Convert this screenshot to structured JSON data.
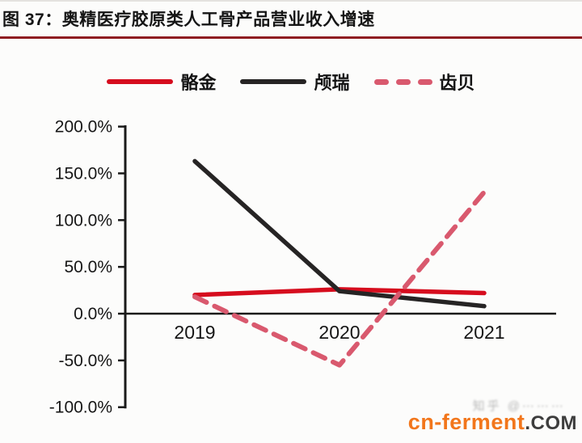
{
  "figure": {
    "title": "图 37：奥精医疗胶原类人工骨产品营业收入增速"
  },
  "legend": [
    {
      "label": "骼金",
      "color": "#D60D1E",
      "style": "solid"
    },
    {
      "label": "颅瑞",
      "color": "#262424",
      "style": "solid"
    },
    {
      "label": "齿贝",
      "color": "#D9596E",
      "style": "dashed"
    }
  ],
  "chart_data": {
    "type": "line",
    "title": "奥精医疗胶原类人工骨产品营业收入增速",
    "categories": [
      "2019",
      "2020",
      "2021"
    ],
    "series": [
      {
        "name": "骼金",
        "values": [
          20,
          26,
          22
        ],
        "color": "#D60D1E",
        "dash": false
      },
      {
        "name": "颅瑞",
        "values": [
          163,
          24,
          8
        ],
        "color": "#262424",
        "dash": false
      },
      {
        "name": "齿贝",
        "values": [
          18,
          -55,
          130
        ],
        "color": "#D9596E",
        "dash": true
      }
    ],
    "unit": "%",
    "ylim": [
      -100,
      200
    ],
    "y_ticks": [
      {
        "value": 200,
        "label": "200.0%"
      },
      {
        "value": 150,
        "label": "150.0%"
      },
      {
        "value": 100,
        "label": "100.0%"
      },
      {
        "value": 50,
        "label": "50.0%"
      },
      {
        "value": 0,
        "label": "0.0%"
      },
      {
        "value": -50,
        "label": "-50.0%"
      },
      {
        "value": -100,
        "label": "-100.0%"
      }
    ],
    "legend_position": "top",
    "grid": false
  },
  "watermark": {
    "brand": "cn-ferment",
    "brand_suffix": ".COM",
    "brand_color": "#F2761B",
    "suffix_color": "#3D3D3D",
    "faint_text": "知乎 @⋯⋯⋯"
  },
  "colors": {
    "title_underline": "#8F1D22",
    "axis": "#1A1A1A",
    "background": "#FCFCFB"
  }
}
